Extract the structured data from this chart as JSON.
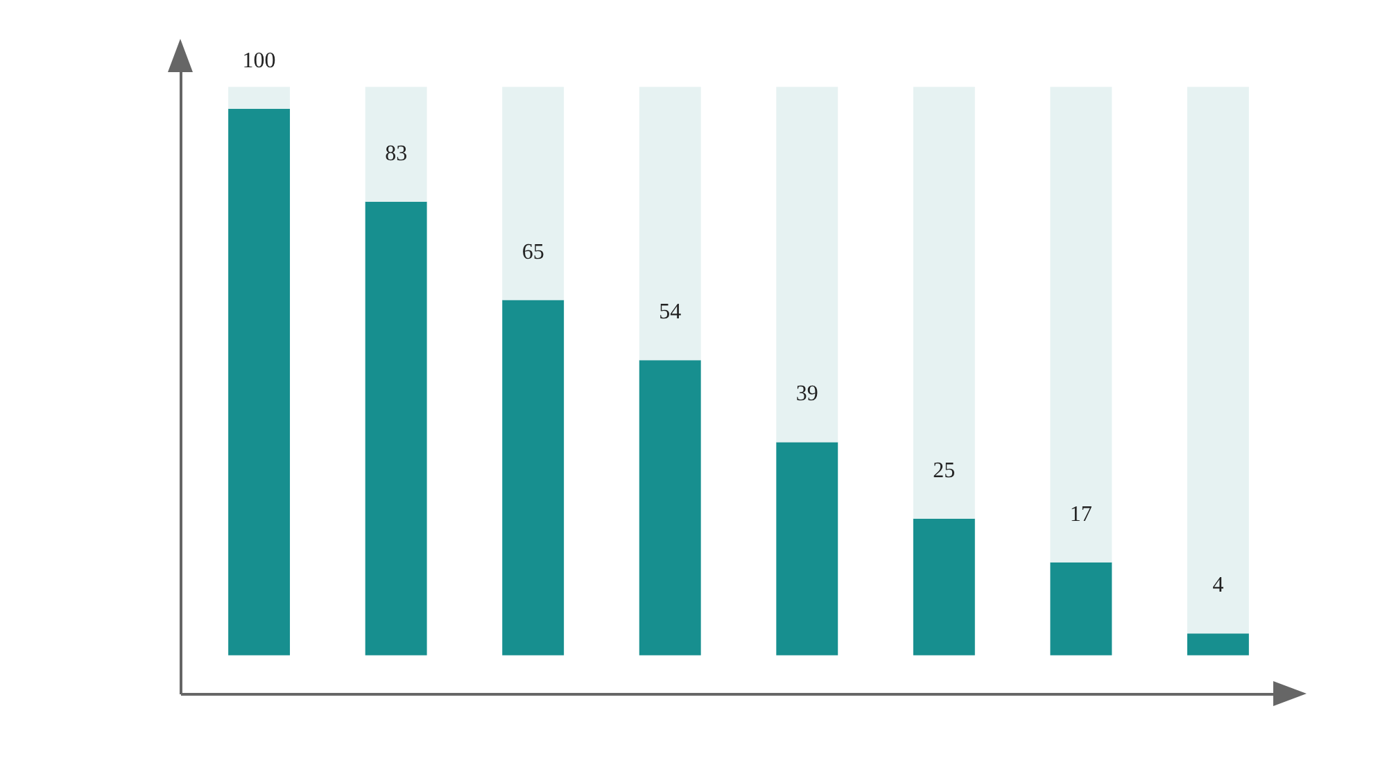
{
  "chart_data": {
    "type": "bar",
    "stacked": true,
    "categories": [
      null,
      null,
      null,
      null,
      null,
      null,
      null,
      null
    ],
    "ylim": [
      -7,
      111
    ],
    "series": [
      {
        "color": "#178f8f",
        "values": [
          100,
          83,
          65,
          54,
          39,
          25,
          17,
          4
        ],
        "value_labels": [
          "100",
          "83",
          "65",
          "54",
          "39",
          "25",
          "17",
          "4"
        ]
      },
      {
        "color": "#e6f2f2",
        "values": [
          4,
          21,
          39,
          50,
          65,
          79,
          87,
          100
        ]
      }
    ]
  }
}
